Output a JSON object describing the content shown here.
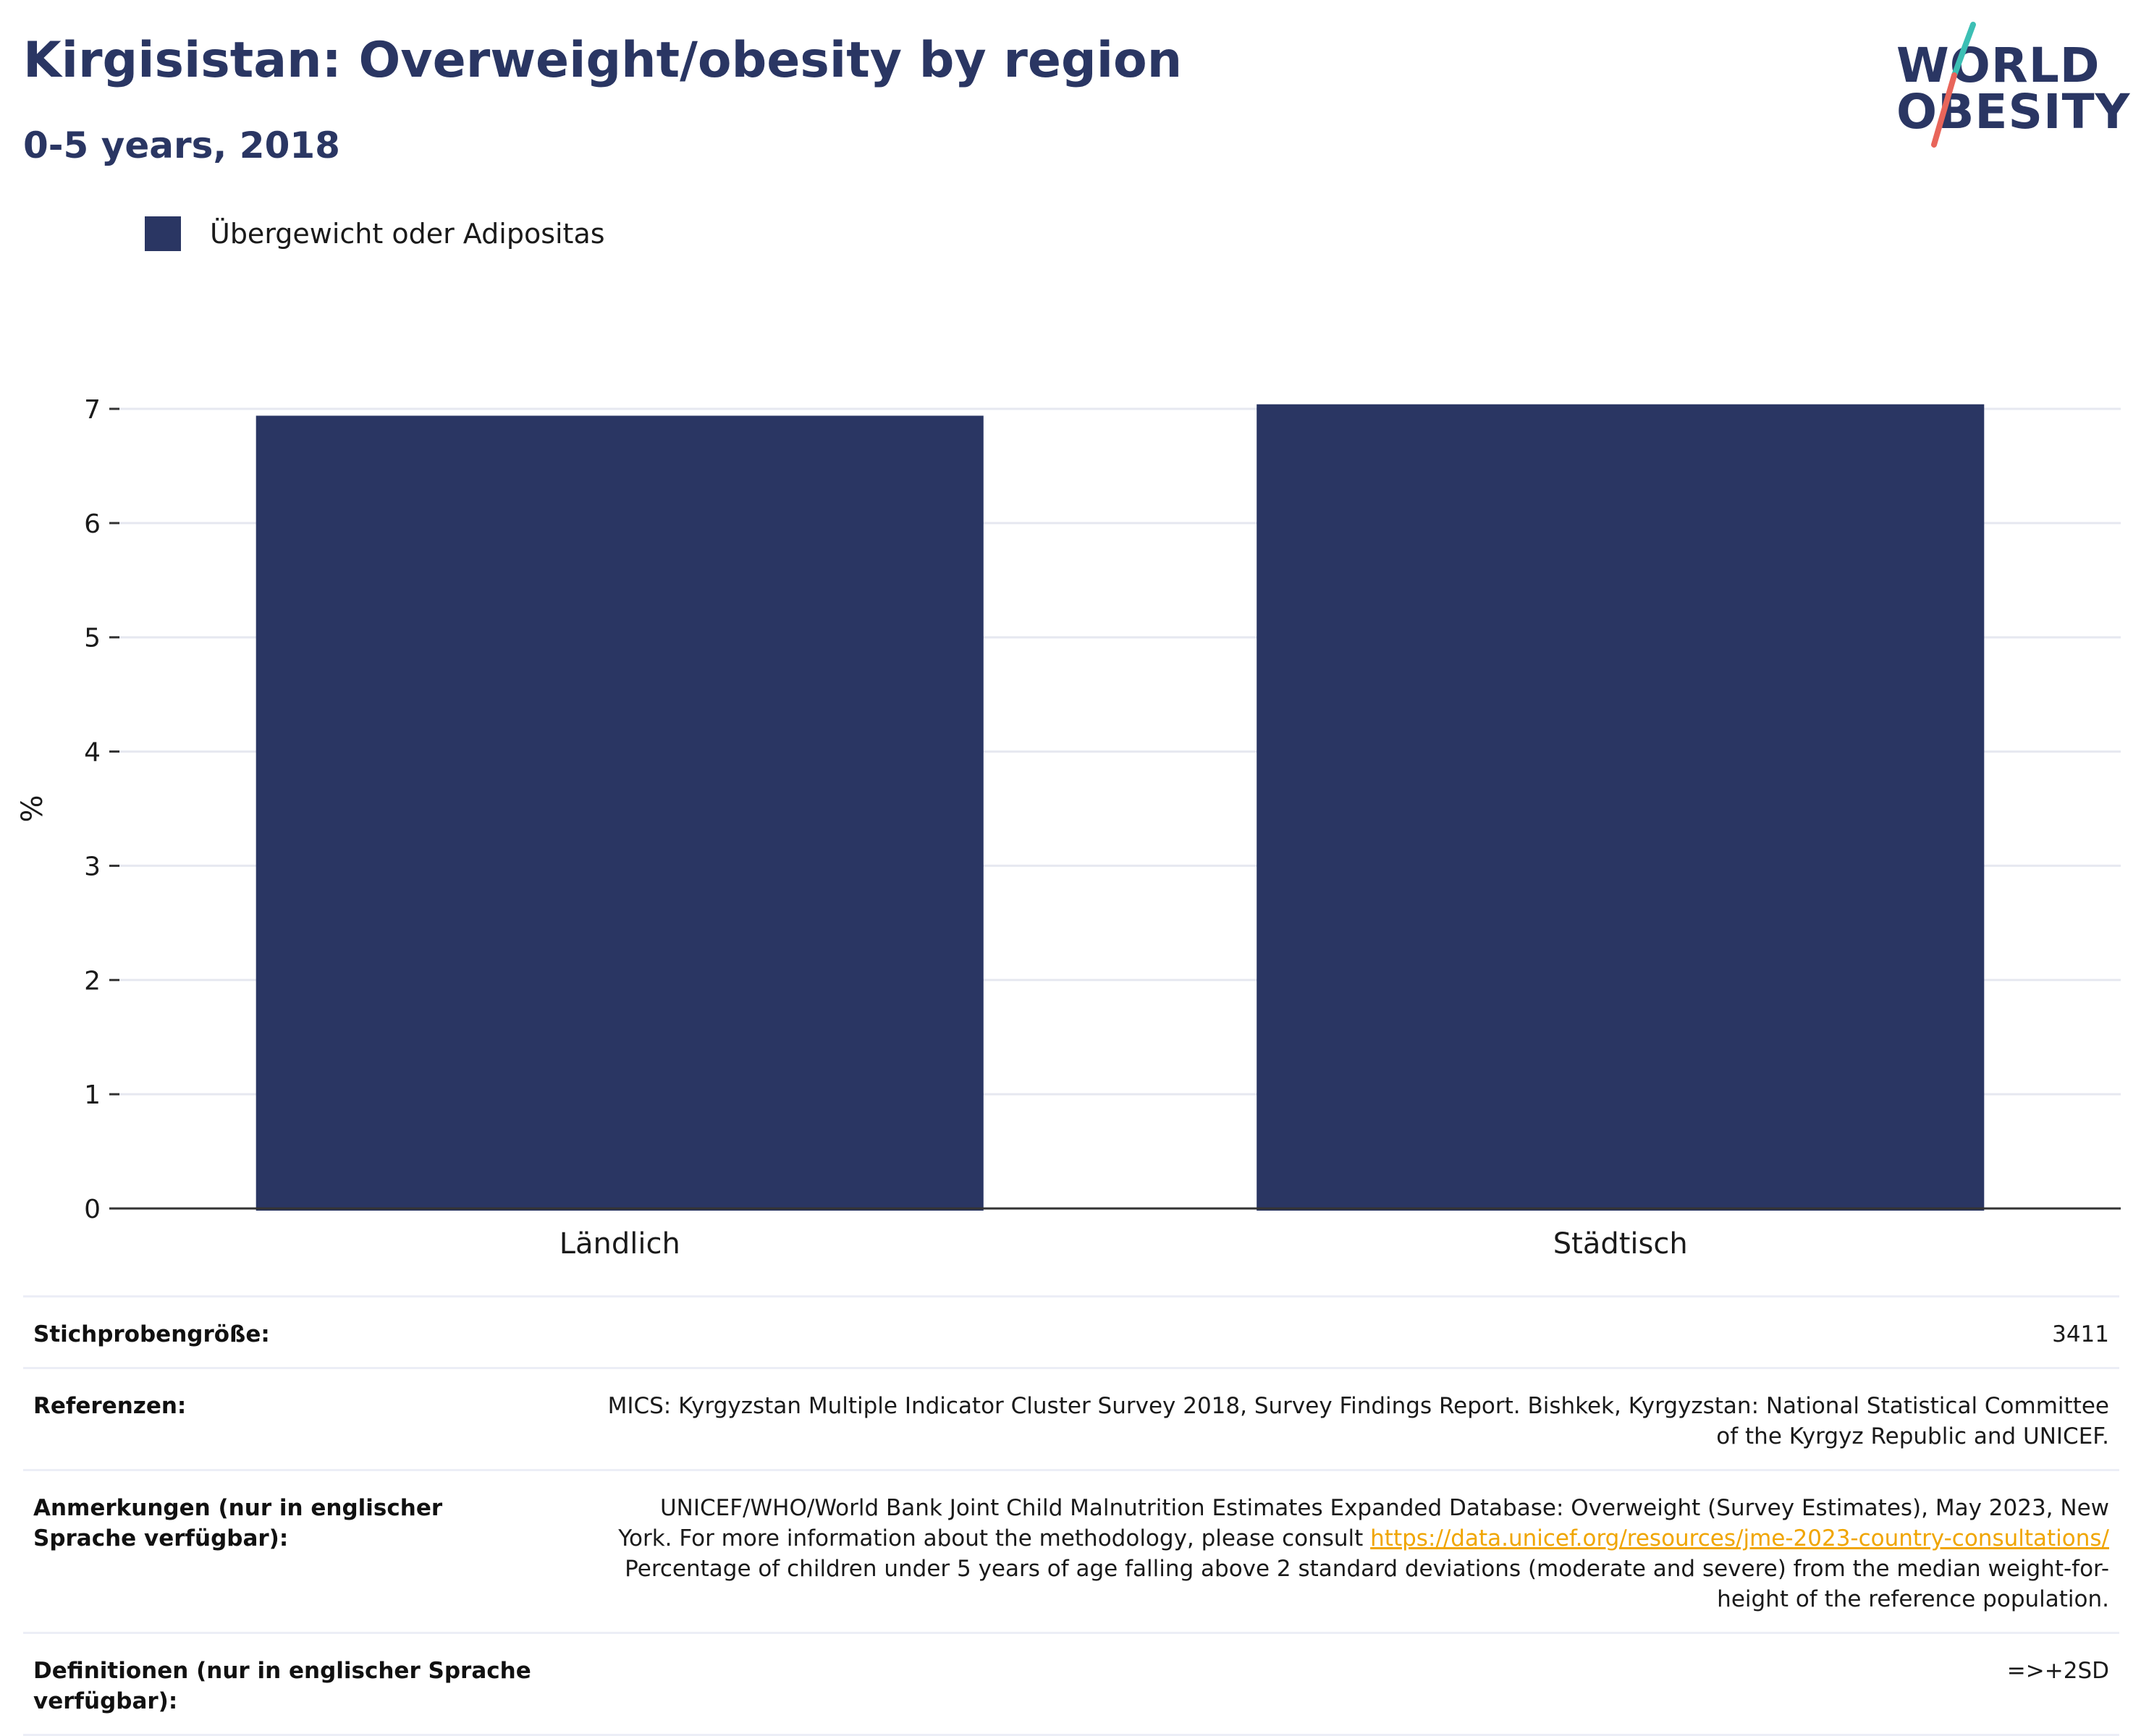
{
  "header": {
    "title": "Kirgisistan: Overweight/obesity by region",
    "subtitle": "0-5 years, 2018"
  },
  "logo": {
    "line1": "WORLD",
    "line2": "OBESITY",
    "colors": {
      "text": "#2a3663",
      "slash_top": "#3cbfb4",
      "slash_bottom": "#e8655a"
    }
  },
  "colors": {
    "bar": "#2a3663",
    "grid": "#e6e8f0",
    "axis": "#333333"
  },
  "chart_data": {
    "type": "bar",
    "categories": [
      "Ländlich",
      "Städtisch"
    ],
    "series": [
      {
        "name": "Übergewicht oder Adipositas",
        "values": [
          6.94,
          7.04
        ]
      }
    ],
    "xlabel": "",
    "ylabel": "%",
    "ylim": [
      0,
      7
    ],
    "yticks": [
      0,
      1,
      2,
      3,
      4,
      5,
      6,
      7
    ],
    "grid": true,
    "legend": "top-left"
  },
  "info_table": [
    {
      "key": "Stichprobengröße:",
      "lines": [
        "3411"
      ]
    },
    {
      "key": "Referenzen:",
      "lines": [
        "MICS: Kyrgyzstan Multiple Indicator Cluster Survey 2018, Survey Findings Report. Bishkek, Kyrgyzstan: National Statistical Committee",
        "of the Kyrgyz Republic and UNICEF."
      ]
    },
    {
      "key": "Anmerkungen (nur in englischer Sprache verfügbar):",
      "lines": [
        "UNICEF/WHO/World Bank Joint Child Malnutrition Estimates Expanded Database: Overweight (Survey Estimates), May 2023, New",
        "York. For more information about the methodology, please consult",
        "Percentage of children under 5 years of age falling above 2 standard deviations (moderate and severe) from the median weight-for-",
        "height of the reference population."
      ],
      "link": "https://data.unicef.org/resources/jme-2023-country-consultations/"
    },
    {
      "key": "Definitionen (nur in englischer Sprache verfügbar):",
      "lines": [
        "=>+2SD"
      ]
    }
  ]
}
